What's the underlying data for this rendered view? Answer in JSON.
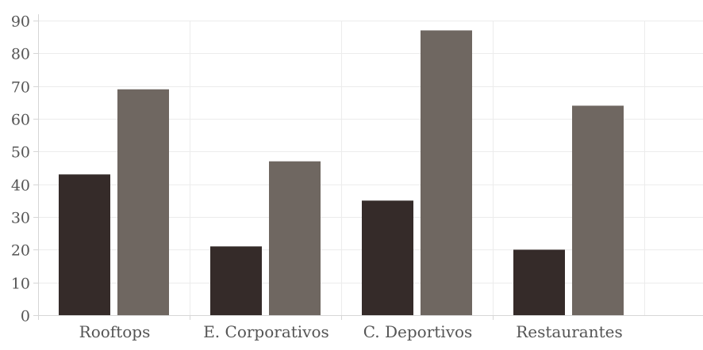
{
  "chart_data": {
    "type": "bar",
    "categories": [
      "Rooftops",
      "E. Corporativos",
      "C. Deportivos",
      "Restaurantes"
    ],
    "series": [
      {
        "values": [
          43,
          21,
          35,
          20
        ],
        "color": "#352b29"
      },
      {
        "values": [
          69,
          47,
          87,
          64
        ],
        "color": "#6f6761"
      }
    ],
    "yticks": [
      0,
      10,
      20,
      30,
      40,
      50,
      60,
      70,
      80,
      90
    ],
    "ylim": [
      0,
      90
    ],
    "grid": true,
    "title": "",
    "xlabel": "",
    "ylabel": ""
  }
}
